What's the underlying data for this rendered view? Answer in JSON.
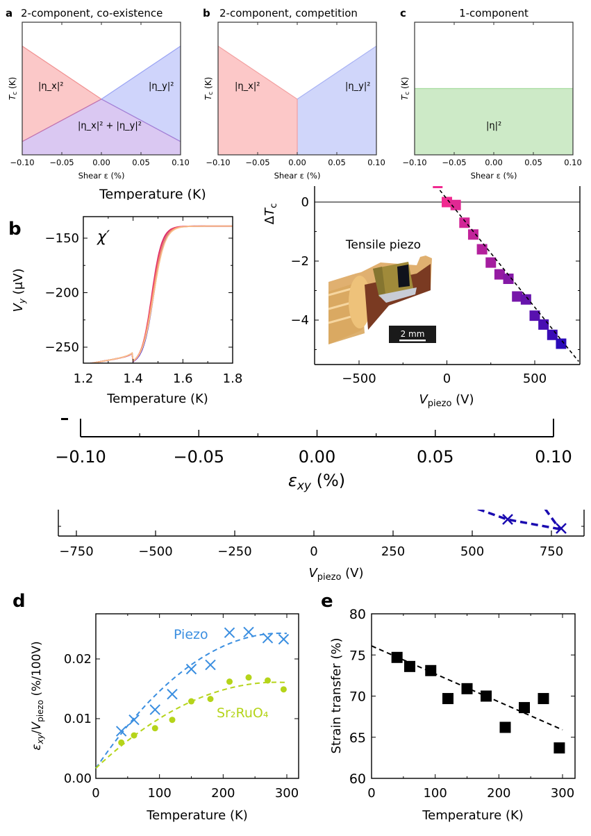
{
  "chart_data": [
    {
      "id": "a",
      "type": "area",
      "panel_letter": "a",
      "title": "2-component, co-existence",
      "xlabel": "Shear ε (%)",
      "ylabel": "T_c (K)",
      "xlim": [
        -0.1,
        0.1
      ],
      "ylim": [
        0,
        1
      ],
      "xticks": [
        "−0.10",
        "−0.05",
        "0.00",
        "0.05",
        "0.10"
      ],
      "regions": [
        {
          "name": "|η_x|²",
          "color": "#f8b4b4",
          "edge": [
            [
              -0.1,
              0.82
            ],
            [
              0.0,
              0.42
            ],
            [
              0.1,
              0.1
            ]
          ]
        },
        {
          "name": "|η_y|²",
          "color": "#b9c2f8",
          "edge": [
            [
              -0.1,
              0.1
            ],
            [
              0.0,
              0.42
            ],
            [
              0.1,
              0.82
            ]
          ]
        },
        {
          "name": "|η_x|² + |η_y|²",
          "color": "#d6c0f0",
          "edge": [
            [
              -0.1,
              0.1
            ],
            [
              0.0,
              0.42
            ],
            [
              0.1,
              0.1
            ]
          ]
        }
      ],
      "annotations": [
        "|η_x|²",
        "|η_y|²",
        "|η_x|² + |η_y|²"
      ]
    },
    {
      "id": "b_top",
      "type": "area",
      "panel_letter": "b",
      "title": "2-component, competition",
      "xlabel": "Shear ε (%)",
      "ylabel": "T_c (K)",
      "xlim": [
        -0.1,
        0.1
      ],
      "ylim": [
        0,
        1
      ],
      "xticks": [
        "−0.10",
        "−0.05",
        "0.00",
        "0.05",
        "0.10"
      ],
      "regions": [
        {
          "name": "|η_x|²",
          "color": "#fcc8c8",
          "edge": [
            [
              -0.1,
              0.82
            ],
            [
              0.0,
              0.42
            ]
          ]
        },
        {
          "name": "|η_y|²",
          "color": "#d0d6fa",
          "edge": [
            [
              0.0,
              0.42
            ],
            [
              0.1,
              0.82
            ]
          ]
        }
      ],
      "annotations": [
        "|η_x|²",
        "|η_y|²"
      ]
    },
    {
      "id": "c",
      "type": "area",
      "panel_letter": "c",
      "title": "1-component",
      "xlabel": "Shear ε (%)",
      "ylabel": "T_c (K)",
      "xlim": [
        -0.1,
        0.1
      ],
      "ylim": [
        0,
        1
      ],
      "xticks": [
        "−0.10",
        "−0.05",
        "0.00",
        "0.05",
        "0.10"
      ],
      "regions": [
        {
          "name": "|η|²",
          "color": "#cdeac7",
          "edge": [
            [
              -0.1,
              0.5
            ],
            [
              0.1,
              0.5
            ]
          ]
        }
      ],
      "annotations": [
        "|η|²"
      ]
    },
    {
      "id": "b_chi",
      "type": "line",
      "panel_letter": "b",
      "cut_label": "Temperature (K)",
      "annotation": "χ′",
      "xlabel": "Temperature (K)",
      "ylabel": "V_y (μV)",
      "xlim": [
        1.2,
        1.8
      ],
      "ylim": [
        -265,
        -133
      ],
      "xticks": [
        "1.2",
        "1.4",
        "1.6",
        "1.8"
      ],
      "yticks": [
        "−150",
        "−200",
        "−250"
      ],
      "series": [
        {
          "name": "curve-1",
          "color": "#2a0fd0",
          "Tc": 1.482,
          "width": 0.048
        },
        {
          "name": "curve-2",
          "color": "#8c22c8",
          "Tc": 1.478,
          "width": 0.046
        },
        {
          "name": "curve-3",
          "color": "#e0306a",
          "Tc": 1.475,
          "width": 0.045
        },
        {
          "name": "curve-4",
          "color": "#f5806a",
          "Tc": 1.478,
          "width": 0.048
        },
        {
          "name": "curve-5",
          "color": "#f9c08a",
          "Tc": 1.482,
          "width": 0.05
        }
      ],
      "low_value": -266,
      "high_value": -139
    },
    {
      "id": "dTc",
      "type": "scatter",
      "ylabel": "ΔT_c",
      "xlabel": "V_piezo (V)",
      "xlim": [
        -750,
        750
      ],
      "ylim": [
        -5.4,
        0.4
      ],
      "xticks": [
        "−500",
        "0",
        "500"
      ],
      "yticks": [
        "0",
        "−2",
        "−4"
      ],
      "inset_label": "Tensile piezo",
      "scale_bar": "2 mm",
      "points": [
        {
          "x": 0,
          "y": 0.0
        },
        {
          "x": 50,
          "y": -0.1
        },
        {
          "x": 100,
          "y": -0.7
        },
        {
          "x": 150,
          "y": -1.1
        },
        {
          "x": 200,
          "y": -1.6
        },
        {
          "x": 250,
          "y": -2.05
        },
        {
          "x": 300,
          "y": -2.45
        },
        {
          "x": 350,
          "y": -2.6
        },
        {
          "x": 400,
          "y": -3.2
        },
        {
          "x": 450,
          "y": -3.3
        },
        {
          "x": 500,
          "y": -3.85
        },
        {
          "x": 550,
          "y": -4.15
        },
        {
          "x": 600,
          "y": -4.5
        },
        {
          "x": 650,
          "y": -4.8
        }
      ],
      "fit_line": [
        [
          -40,
          0.4
        ],
        [
          750,
          -5.4
        ]
      ],
      "colors": {
        "start": "#f02a90",
        "end": "#2a0ab8"
      }
    },
    {
      "id": "exy_axis",
      "type": "line",
      "xlabel": "ε_xy (%)",
      "xlim": [
        -0.1,
        0.1
      ],
      "xticks": [
        "−0.10",
        "−0.05",
        "0.00",
        "0.05",
        "0.10"
      ]
    },
    {
      "id": "vpiezo_axis",
      "type": "line",
      "xlabel": "V_piezo (V)",
      "xlim": [
        -850,
        850
      ],
      "xticks": [
        "−750",
        "−500",
        "−250",
        "0",
        "250",
        "500",
        "750"
      ],
      "points": [
        {
          "x": 600,
          "y": 0.6
        },
        {
          "x": 800,
          "y": 0.35
        }
      ],
      "color": "#1a0ab0"
    },
    {
      "id": "d",
      "type": "scatter",
      "panel_letter": "d",
      "xlabel": "Temperature (K)",
      "ylabel": "ε_xy/V_piezo (%/100V)",
      "xlim": [
        0,
        310
      ],
      "ylim": [
        0,
        0.0275
      ],
      "xticks": [
        "0",
        "100",
        "200",
        "300"
      ],
      "yticks": [
        "0.00",
        "0.01",
        "0.02"
      ],
      "series": [
        {
          "name": "Piezo",
          "color": "#3a8ee0",
          "marker": "x",
          "x": [
            40,
            60,
            93,
            120,
            150,
            180,
            210,
            240,
            270,
            295
          ],
          "y": [
            0.0079,
            0.0098,
            0.0115,
            0.0141,
            0.0183,
            0.019,
            0.0244,
            0.0245,
            0.0235,
            0.0233
          ],
          "fit": {
            "a": 0.0017,
            "peak_x": 290,
            "peak_y": 0.0243
          }
        },
        {
          "name": "Sr₂RuO₄",
          "color": "#b5d41a",
          "marker": "o",
          "x": [
            40,
            60,
            93,
            120,
            150,
            180,
            210,
            240,
            270,
            295
          ],
          "y": [
            0.006,
            0.0072,
            0.0084,
            0.0098,
            0.0129,
            0.0133,
            0.0162,
            0.0169,
            0.0164,
            0.0149
          ],
          "fit": {
            "a": 0.0017,
            "peak_x": 285,
            "peak_y": 0.0161
          }
        }
      ]
    },
    {
      "id": "e",
      "type": "scatter",
      "panel_letter": "e",
      "xlabel": "Temperature (K)",
      "ylabel": "Strain transfer (%)",
      "xlim": [
        0,
        320
      ],
      "ylim": [
        60,
        80
      ],
      "xticks": [
        "0",
        "100",
        "200",
        "300"
      ],
      "yticks": [
        "60",
        "65",
        "70",
        "75",
        "80"
      ],
      "series": [
        {
          "name": "strain-transfer",
          "color": "#000000",
          "marker": "s",
          "x": [
            40,
            60,
            93,
            120,
            150,
            180,
            210,
            240,
            270,
            295
          ],
          "y": [
            74.7,
            73.6,
            73.1,
            69.7,
            70.9,
            70.0,
            66.2,
            68.6,
            69.7,
            63.7
          ]
        }
      ],
      "fit_line": [
        [
          0,
          76.1
        ],
        [
          300,
          65.9
        ]
      ]
    }
  ]
}
